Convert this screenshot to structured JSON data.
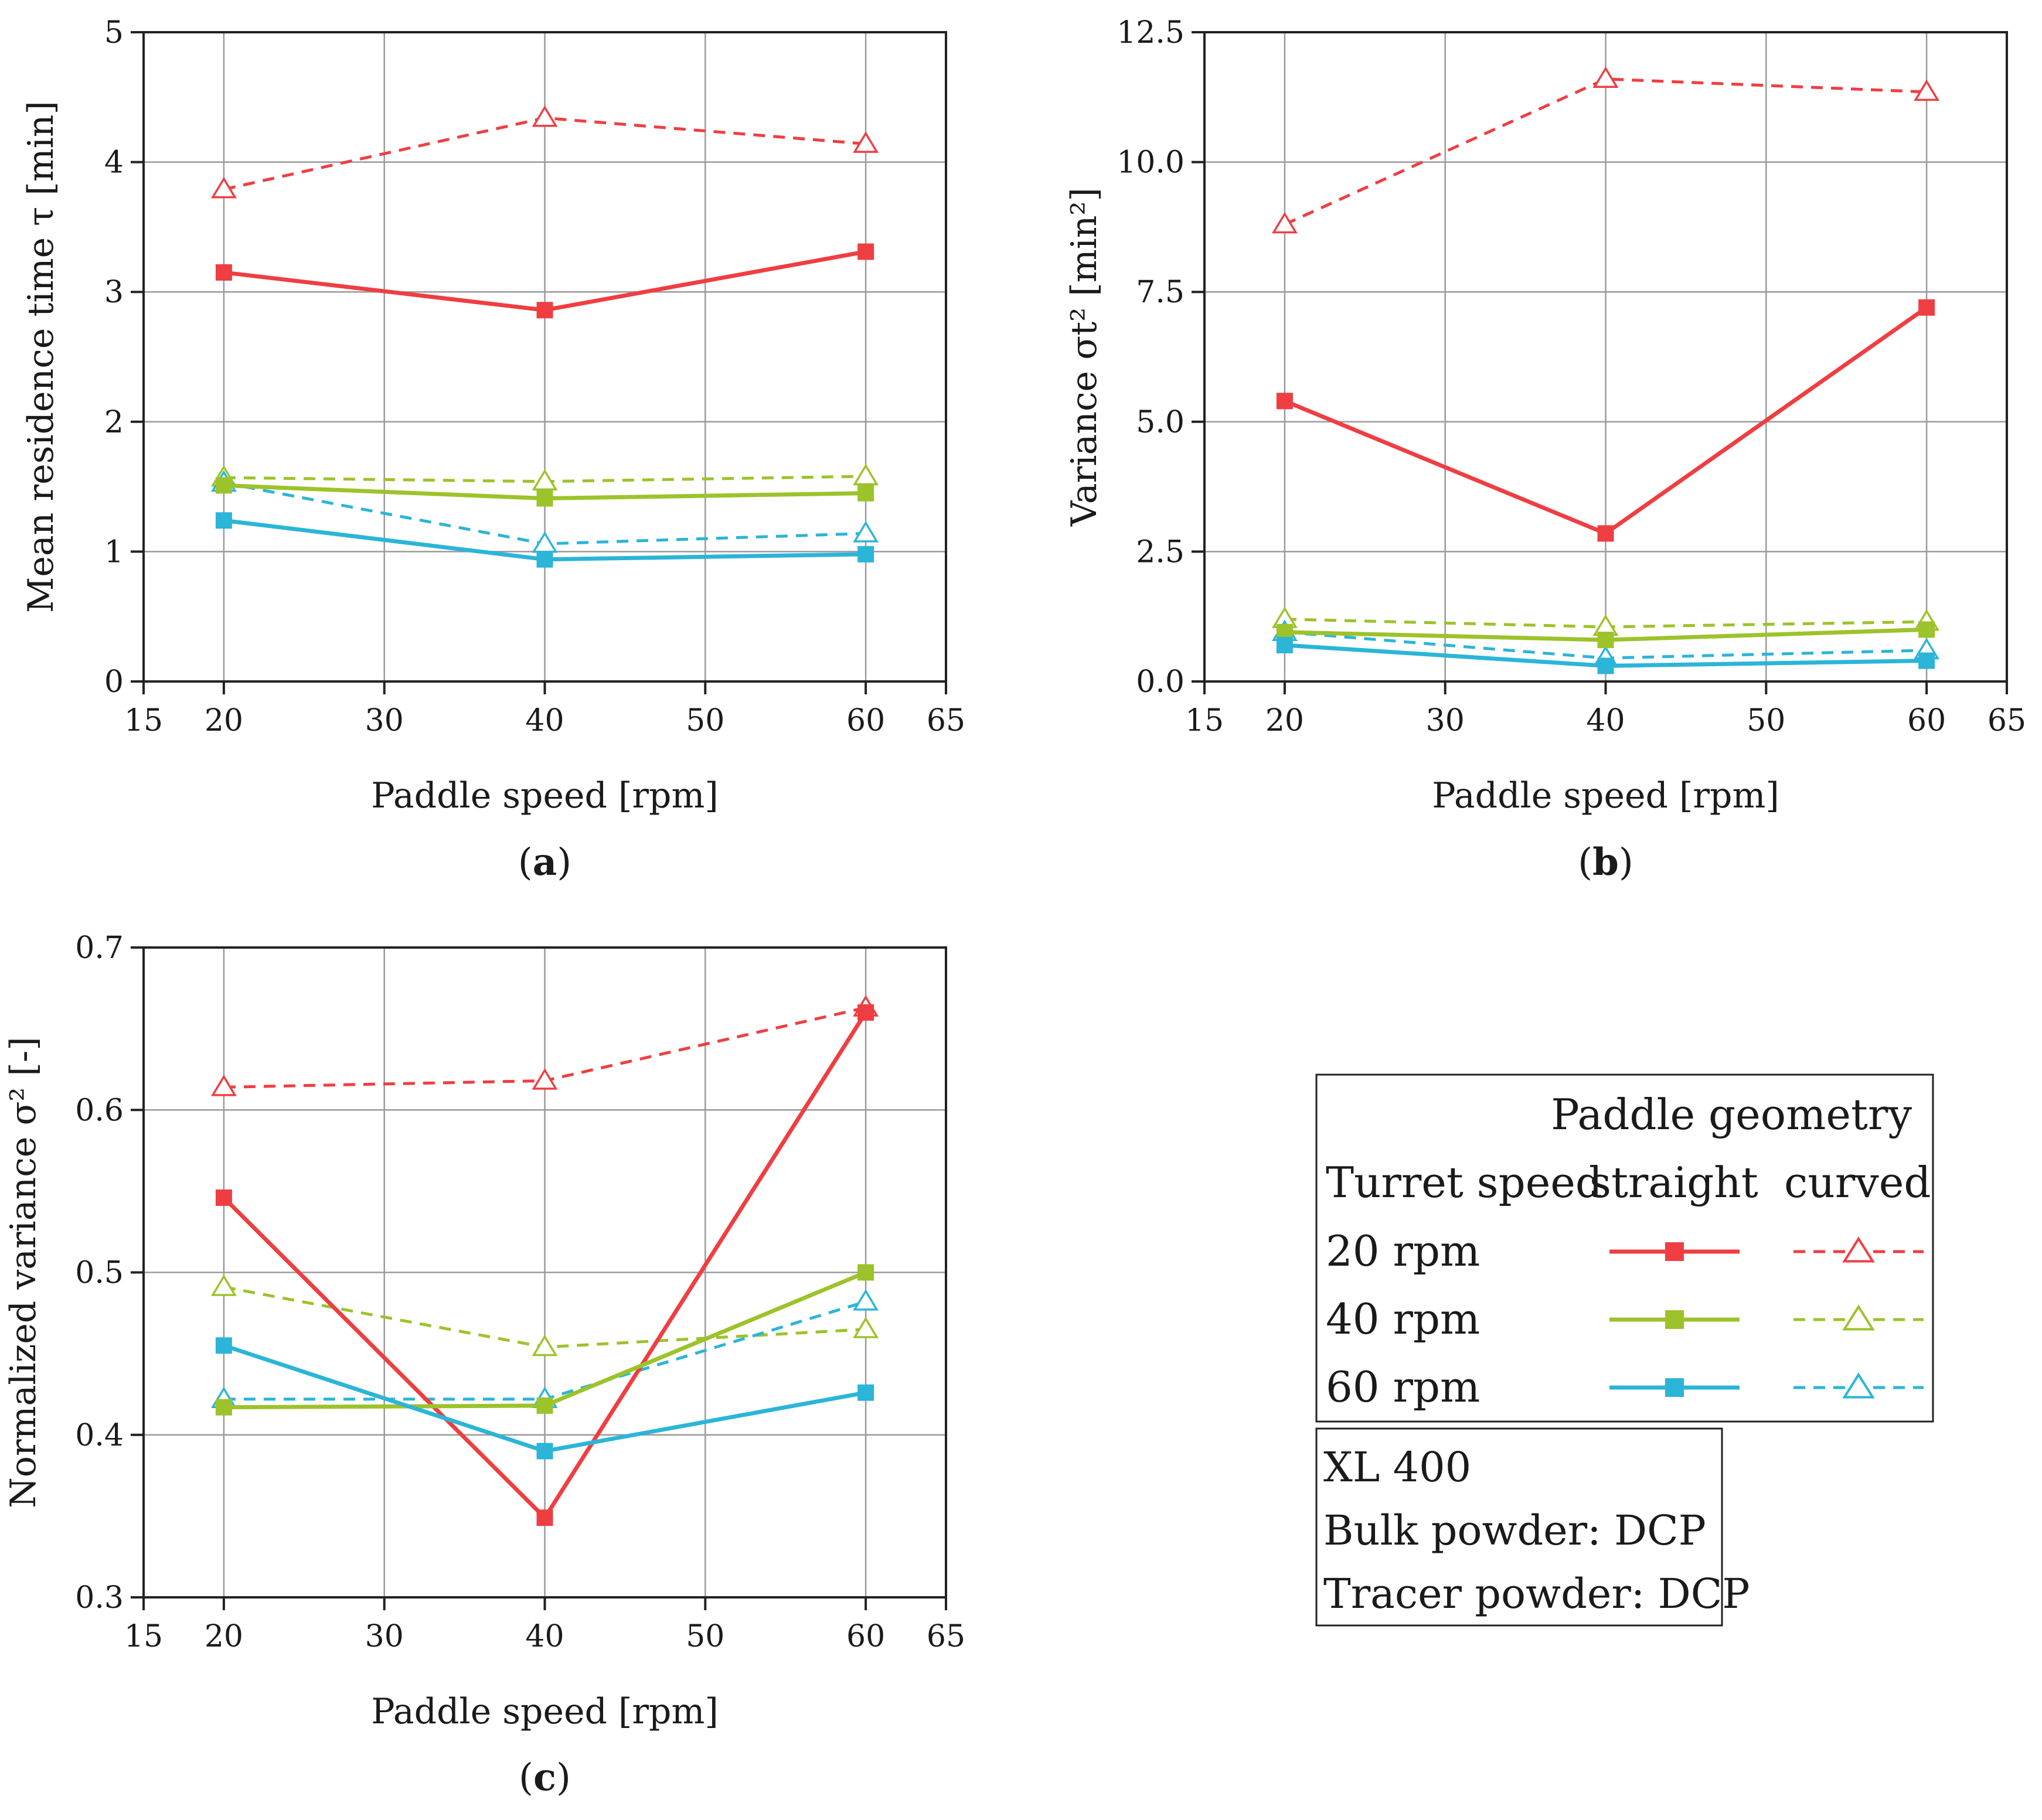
{
  "figure": {
    "charts": [
      {
        "panel_label": "a",
        "paren_open": "(",
        "paren_close": ")"
      },
      {
        "panel_label": "b",
        "paren_open": "(",
        "paren_close": ")"
      },
      {
        "panel_label": "c",
        "paren_open": "(",
        "paren_close": ")"
      }
    ]
  },
  "legend": {
    "header": "Paddle geometry",
    "turret_col": "Turret speed",
    "straight_col": "straight",
    "curved_col": "curved",
    "rows": [
      "20 rpm",
      "40 rpm",
      "60 rpm"
    ]
  },
  "info_box": {
    "lines": [
      "XL 400",
      "Bulk powder: DCP",
      "Tracer powder: DCP"
    ]
  },
  "colors": {
    "turret_20": "#ef3e42",
    "turret_40": "#9cc32a",
    "turret_60": "#2bb5d8",
    "grid": "#9a9a9a",
    "axis": "#222222"
  },
  "chart_data": [
    {
      "type": "line",
      "panel": "a",
      "xlabel": "Paddle speed [rpm]",
      "ylabel": "Mean residence time τ [min]",
      "xlim": [
        15,
        65
      ],
      "ylim": [
        0,
        5
      ],
      "xticks": [
        15,
        20,
        30,
        40,
        50,
        60,
        65
      ],
      "yticks": [
        0,
        1,
        2,
        3,
        4,
        5
      ],
      "ytick_labels": [
        "0",
        "1",
        "2",
        "3",
        "4",
        "5"
      ],
      "x": [
        20,
        40,
        60
      ],
      "series": [
        {
          "name": "20 rpm straight",
          "turret": "20 rpm",
          "geometry": "straight",
          "values": [
            3.15,
            2.86,
            3.31
          ]
        },
        {
          "name": "20 rpm curved",
          "turret": "20 rpm",
          "geometry": "curved",
          "values": [
            3.79,
            4.34,
            4.14
          ]
        },
        {
          "name": "40 rpm straight",
          "turret": "40 rpm",
          "geometry": "straight",
          "values": [
            1.51,
            1.41,
            1.45
          ]
        },
        {
          "name": "40 rpm curved",
          "turret": "40 rpm",
          "geometry": "curved",
          "values": [
            1.57,
            1.54,
            1.58
          ]
        },
        {
          "name": "60 rpm straight",
          "turret": "60 rpm",
          "geometry": "straight",
          "values": [
            1.24,
            0.94,
            0.98
          ]
        },
        {
          "name": "60 rpm curved",
          "turret": "60 rpm",
          "geometry": "curved",
          "values": [
            1.53,
            1.06,
            1.14
          ]
        }
      ]
    },
    {
      "type": "line",
      "panel": "b",
      "xlabel": "Paddle speed [rpm]",
      "ylabel": "Variance σt² [min²]",
      "xlim": [
        15,
        65
      ],
      "ylim": [
        0,
        12.5
      ],
      "xticks": [
        15,
        20,
        30,
        40,
        50,
        60,
        65
      ],
      "yticks": [
        0,
        2.5,
        5,
        7.5,
        10,
        12.5
      ],
      "ytick_labels": [
        "0.0",
        "2.5",
        "5.0",
        "7.5",
        "10.0",
        "12.5"
      ],
      "x": [
        20,
        40,
        60
      ],
      "series": [
        {
          "name": "20 rpm straight",
          "turret": "20 rpm",
          "geometry": "straight",
          "values": [
            5.4,
            2.85,
            7.2
          ]
        },
        {
          "name": "20 rpm curved",
          "turret": "20 rpm",
          "geometry": "curved",
          "values": [
            8.8,
            11.6,
            11.35
          ]
        },
        {
          "name": "40 rpm straight",
          "turret": "40 rpm",
          "geometry": "straight",
          "values": [
            0.95,
            0.8,
            1.0
          ]
        },
        {
          "name": "40 rpm curved",
          "turret": "40 rpm",
          "geometry": "curved",
          "values": [
            1.2,
            1.05,
            1.15
          ]
        },
        {
          "name": "60 rpm straight",
          "turret": "60 rpm",
          "geometry": "straight",
          "values": [
            0.7,
            0.3,
            0.4
          ]
        },
        {
          "name": "60 rpm curved",
          "turret": "60 rpm",
          "geometry": "curved",
          "values": [
            0.95,
            0.45,
            0.6
          ]
        }
      ]
    },
    {
      "type": "line",
      "panel": "c",
      "xlabel": "Paddle speed [rpm]",
      "ylabel": "Normalized variance σ² [-]",
      "xlim": [
        15,
        65
      ],
      "ylim": [
        0.3,
        0.7
      ],
      "xticks": [
        15,
        20,
        30,
        40,
        50,
        60,
        65
      ],
      "yticks": [
        0.3,
        0.4,
        0.5,
        0.6,
        0.7
      ],
      "ytick_labels": [
        "0.3",
        "0.4",
        "0.5",
        "0.6",
        "0.7"
      ],
      "x": [
        20,
        40,
        60
      ],
      "series": [
        {
          "name": "20 rpm straight",
          "turret": "20 rpm",
          "geometry": "straight",
          "values": [
            0.546,
            0.349,
            0.66
          ]
        },
        {
          "name": "20 rpm curved",
          "turret": "20 rpm",
          "geometry": "curved",
          "values": [
            0.614,
            0.618,
            0.663
          ]
        },
        {
          "name": "40 rpm straight",
          "turret": "40 rpm",
          "geometry": "straight",
          "values": [
            0.417,
            0.418,
            0.5
          ]
        },
        {
          "name": "40 rpm curved",
          "turret": "40 rpm",
          "geometry": "curved",
          "values": [
            0.491,
            0.454,
            0.465
          ]
        },
        {
          "name": "60 rpm straight",
          "turret": "60 rpm",
          "geometry": "straight",
          "values": [
            0.455,
            0.39,
            0.426
          ]
        },
        {
          "name": "60 rpm curved",
          "turret": "60 rpm",
          "geometry": "curved",
          "values": [
            0.422,
            0.422,
            0.482
          ]
        }
      ]
    }
  ]
}
